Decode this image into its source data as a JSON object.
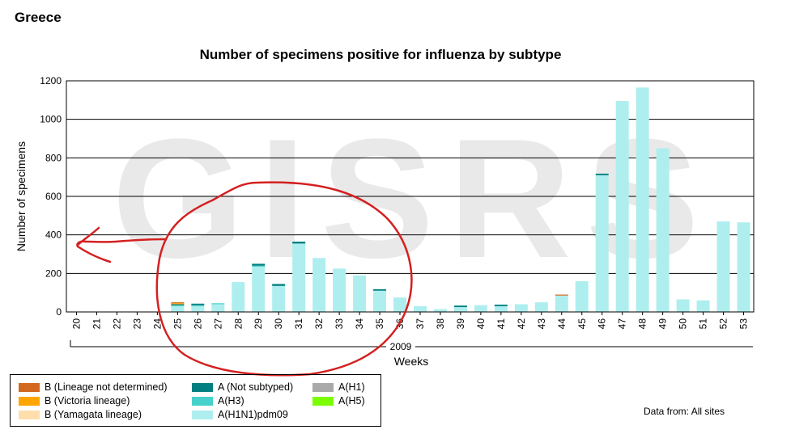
{
  "header": {
    "country": "Greece"
  },
  "footer": {
    "data_from": "Data from: All sites"
  },
  "chart_data": {
    "type": "bar",
    "stacked": true,
    "title": "Number of specimens positive for influenza by subtype",
    "xlabel": "Weeks",
    "year_label": "2009",
    "ylabel": "Number of specimens",
    "ylim": [
      0,
      1200
    ],
    "yticks": [
      0,
      200,
      400,
      600,
      800,
      1000,
      1200
    ],
    "grid": true,
    "legend_position": "bottom-left",
    "watermark": "GISRS",
    "categories": [
      "20",
      "21",
      "22",
      "23",
      "24",
      "25",
      "26",
      "27",
      "28",
      "29",
      "30",
      "31",
      "32",
      "33",
      "34",
      "35",
      "36",
      "37",
      "38",
      "39",
      "40",
      "41",
      "42",
      "43",
      "44",
      "45",
      "46",
      "47",
      "48",
      "49",
      "50",
      "51",
      "52",
      "53"
    ],
    "series": [
      {
        "name": "B (Lineage not determined)",
        "color": "#d2691e",
        "values": [
          0,
          0,
          0,
          0,
          0,
          5,
          0,
          0,
          0,
          0,
          0,
          0,
          0,
          0,
          0,
          0,
          0,
          0,
          0,
          0,
          0,
          0,
          0,
          0,
          5,
          0,
          0,
          0,
          0,
          0,
          0,
          0,
          0,
          0
        ]
      },
      {
        "name": "B (Victoria lineage)",
        "color": "#ffa500",
        "values": [
          0,
          0,
          0,
          0,
          0,
          5,
          0,
          0,
          0,
          0,
          0,
          0,
          0,
          0,
          0,
          0,
          0,
          0,
          0,
          0,
          0,
          0,
          0,
          0,
          0,
          0,
          0,
          0,
          0,
          0,
          0,
          0,
          0,
          0
        ]
      },
      {
        "name": "B (Yamagata lineage)",
        "color": "#ffdead",
        "values": [
          0,
          0,
          0,
          0,
          0,
          0,
          0,
          0,
          0,
          0,
          0,
          0,
          0,
          0,
          0,
          0,
          0,
          0,
          0,
          0,
          0,
          0,
          0,
          0,
          0,
          0,
          0,
          0,
          0,
          0,
          0,
          0,
          0,
          0
        ]
      },
      {
        "name": "A (Not subtyped)",
        "color": "#008080",
        "values": [
          0,
          0,
          0,
          0,
          0,
          5,
          8,
          0,
          0,
          10,
          10,
          10,
          0,
          0,
          0,
          8,
          0,
          0,
          0,
          8,
          0,
          8,
          0,
          0,
          0,
          0,
          8,
          0,
          0,
          0,
          0,
          0,
          0,
          0
        ]
      },
      {
        "name": "A(H3)",
        "color": "#48d1cc",
        "values": [
          0,
          0,
          0,
          0,
          0,
          5,
          5,
          5,
          0,
          5,
          0,
          0,
          0,
          0,
          0,
          0,
          0,
          0,
          0,
          0,
          0,
          0,
          0,
          0,
          0,
          0,
          0,
          0,
          0,
          0,
          0,
          0,
          0,
          0
        ]
      },
      {
        "name": "A(H1)",
        "color": "#a9a9a9",
        "values": [
          0,
          0,
          0,
          0,
          0,
          0,
          0,
          0,
          0,
          0,
          0,
          0,
          0,
          0,
          0,
          0,
          0,
          0,
          0,
          0,
          0,
          0,
          0,
          0,
          0,
          0,
          0,
          0,
          0,
          0,
          0,
          0,
          0,
          0
        ]
      },
      {
        "name": "A(H5)",
        "color": "#7cfc00",
        "values": [
          0,
          0,
          0,
          0,
          0,
          0,
          0,
          0,
          0,
          0,
          0,
          0,
          0,
          0,
          0,
          0,
          0,
          0,
          0,
          0,
          0,
          0,
          0,
          0,
          0,
          0,
          0,
          0,
          0,
          0,
          0,
          0,
          0,
          0
        ]
      },
      {
        "name": "A(H1N1)pdm09",
        "color": "#afeeee",
        "values": [
          0,
          0,
          0,
          0,
          0,
          30,
          30,
          40,
          155,
          235,
          135,
          355,
          280,
          225,
          190,
          110,
          75,
          30,
          15,
          25,
          35,
          30,
          40,
          50,
          85,
          160,
          710,
          1095,
          1165,
          850,
          65,
          60,
          470,
          465
        ]
      }
    ]
  },
  "annotation": {
    "color": "#d42020"
  }
}
